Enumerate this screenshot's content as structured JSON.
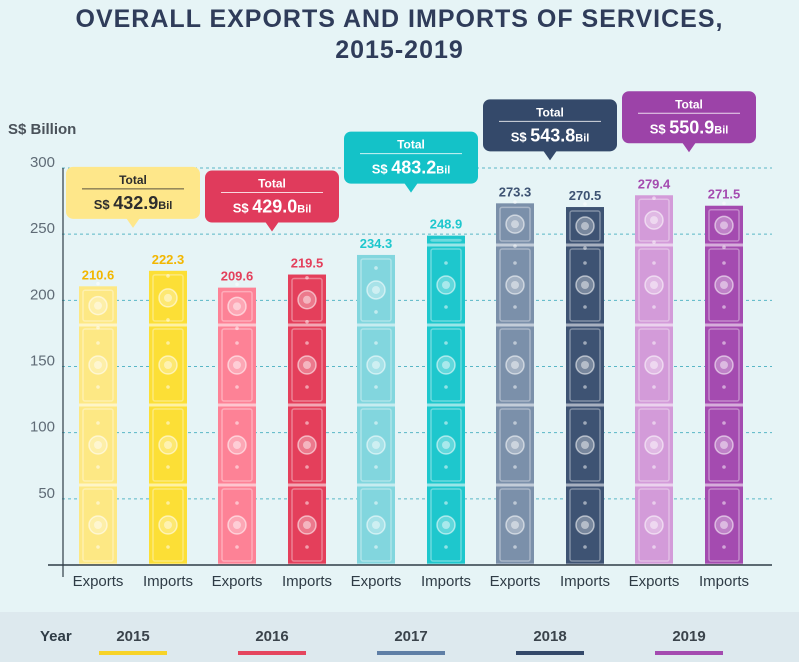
{
  "title_line1": "OVERALL EXPORTS AND IMPORTS OF SERVICES,",
  "title_line2": "2015-2019",
  "chart_data": {
    "type": "bar",
    "title": "OVERALL EXPORTS AND IMPORTS OF SERVICES, 2015-2019",
    "ylabel": "S$ Billion",
    "xlabel": "Year",
    "ylim": [
      0,
      300
    ],
    "yticks": [
      50,
      100,
      150,
      200,
      250,
      300
    ],
    "grid": true,
    "bar_labels": [
      "Exports",
      "Imports"
    ],
    "groups": [
      {
        "year": "2015",
        "exports": 210.6,
        "imports": 222.3,
        "total_label": "Total",
        "total_prefix": "S$",
        "total_value": "432.9",
        "total_unit": "Bil",
        "colors": {
          "exports": "#fde884",
          "imports": "#fcdf36",
          "bubble": "#fee78a",
          "label": "#f2b600",
          "underline": "#f7d328"
        }
      },
      {
        "year": "2016",
        "exports": 209.6,
        "imports": 219.5,
        "total_label": "Total",
        "total_prefix": "S$",
        "total_value": "429.0",
        "total_unit": "Bil",
        "colors": {
          "exports": "#fd8296",
          "imports": "#e43f5b",
          "bubble": "#e03b5c",
          "label": "#e43f5b",
          "underline": "#e5465e"
        }
      },
      {
        "year": "2017",
        "exports": 234.3,
        "imports": 248.9,
        "total_label": "Total",
        "total_prefix": "S$",
        "total_value": "483.2",
        "total_unit": "Bil",
        "colors": {
          "exports": "#82d6de",
          "imports": "#1ec7cd",
          "bubble": "#14c2c8",
          "label": "#1ec7cd",
          "underline": "#5f7fa6"
        }
      },
      {
        "year": "2018",
        "exports": 273.3,
        "imports": 270.5,
        "total_label": "Total",
        "total_prefix": "S$",
        "total_value": "543.8",
        "total_unit": "Bil",
        "colors": {
          "exports": "#7b90aa",
          "imports": "#3e5373",
          "bubble": "#34496a",
          "label": "#3e5373",
          "underline": "#34496a"
        }
      },
      {
        "year": "2019",
        "exports": 279.4,
        "imports": 271.5,
        "total_label": "Total",
        "total_prefix": "S$",
        "total_value": "550.9",
        "total_unit": "Bil",
        "colors": {
          "exports": "#d39bd9",
          "imports": "#a44bb0",
          "bubble": "#9c43a8",
          "label": "#a44bb0",
          "underline": "#a44bb0"
        }
      }
    ]
  }
}
